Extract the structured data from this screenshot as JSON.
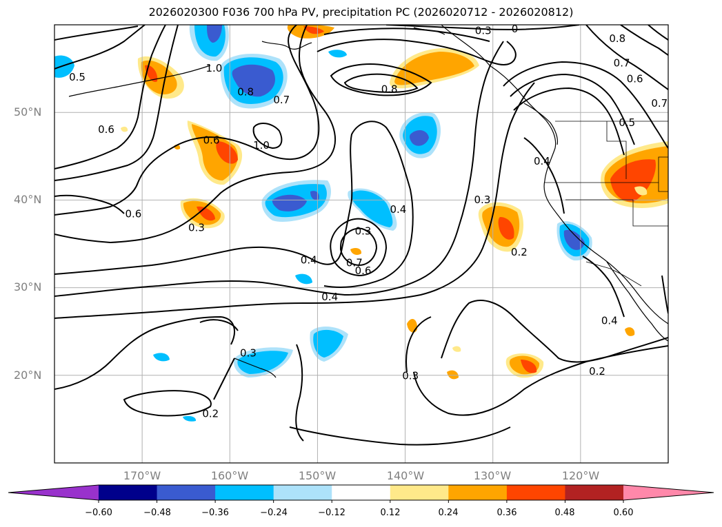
{
  "title": "2026020300 F036 700 hPa PV, precipitation PC (2026020712 - 2026020812)",
  "map": {
    "lat_labels": [
      "50°N",
      "40°N",
      "30°N",
      "20°N"
    ],
    "lat_values": [
      50,
      40,
      30,
      20
    ],
    "lon_labels": [
      "170°W",
      "160°W",
      "150°W",
      "140°W",
      "130°W",
      "120°W"
    ],
    "lon_values": [
      -170,
      -160,
      -150,
      -140,
      -130,
      -120
    ],
    "extent": {
      "lon": [
        -180,
        -110
      ],
      "lat": [
        10,
        60
      ]
    },
    "gridlines": true
  },
  "contour_labels": [
    {
      "text": "0.5",
      "lon": -177.4,
      "lat": 54.0
    },
    {
      "text": "1.0",
      "lon": -161.8,
      "lat": 55.0
    },
    {
      "text": "0.8",
      "lon": -158.2,
      "lat": 52.3
    },
    {
      "text": "0.7",
      "lon": -154.1,
      "lat": 51.4
    },
    {
      "text": "0.6",
      "lon": -174.1,
      "lat": 48.0
    },
    {
      "text": "0.6",
      "lon": -162.1,
      "lat": 46.8
    },
    {
      "text": "1.0",
      "lon": -156.4,
      "lat": 46.2
    },
    {
      "text": "0.3",
      "lon": -131.1,
      "lat": 59.3
    },
    {
      "text": "0",
      "lon": -127.5,
      "lat": 59.5
    },
    {
      "text": "0.8",
      "lon": -115.8,
      "lat": 58.4
    },
    {
      "text": "0.7",
      "lon": -115.3,
      "lat": 55.6
    },
    {
      "text": "0.6",
      "lon": -113.8,
      "lat": 53.8
    },
    {
      "text": "0.7",
      "lon": -111.0,
      "lat": 51.0
    },
    {
      "text": "0.5",
      "lon": -114.7,
      "lat": 48.8
    },
    {
      "text": "0.8",
      "lon": -141.8,
      "lat": 52.6
    },
    {
      "text": "0.4",
      "lon": -124.4,
      "lat": 44.4
    },
    {
      "text": "0.3",
      "lon": -131.2,
      "lat": 40.0
    },
    {
      "text": "0.4",
      "lon": -140.8,
      "lat": 38.9
    },
    {
      "text": "0.6",
      "lon": -171.0,
      "lat": 38.4
    },
    {
      "text": "0.3",
      "lon": -163.8,
      "lat": 36.8
    },
    {
      "text": "0.3",
      "lon": -144.8,
      "lat": 36.4
    },
    {
      "text": "0.4",
      "lon": -151.0,
      "lat": 33.1
    },
    {
      "text": "0.7",
      "lon": -145.8,
      "lat": 32.8
    },
    {
      "text": "0.6",
      "lon": -144.8,
      "lat": 31.9
    },
    {
      "text": "0.2",
      "lon": -127.0,
      "lat": 34.0
    },
    {
      "text": "0.4",
      "lon": -148.6,
      "lat": 28.9
    },
    {
      "text": "0.4",
      "lon": -116.7,
      "lat": 26.2
    },
    {
      "text": "0.3",
      "lon": -157.9,
      "lat": 22.5
    },
    {
      "text": "0.3",
      "lon": -139.4,
      "lat": 19.9
    },
    {
      "text": "0.2",
      "lon": -118.1,
      "lat": 20.4
    },
    {
      "text": "0.2",
      "lon": -162.2,
      "lat": 15.6
    }
  ],
  "colorbar": {
    "ticks": [
      "−0.60",
      "−0.48",
      "−0.36",
      "−0.24",
      "−0.12",
      "0.12",
      "0.24",
      "0.36",
      "0.48",
      "0.60"
    ],
    "levels": [
      -0.6,
      -0.48,
      -0.36,
      -0.24,
      -0.12,
      0.12,
      0.24,
      0.36,
      0.48,
      0.6
    ],
    "colors": [
      "#9932cc",
      "#00008b",
      "#3a5bd0",
      "#00bfff",
      "#ade2fa",
      "#ffffff",
      "#ffe98a",
      "#ffa500",
      "#ff4500",
      "#b22222",
      "#ff88aa"
    ]
  }
}
